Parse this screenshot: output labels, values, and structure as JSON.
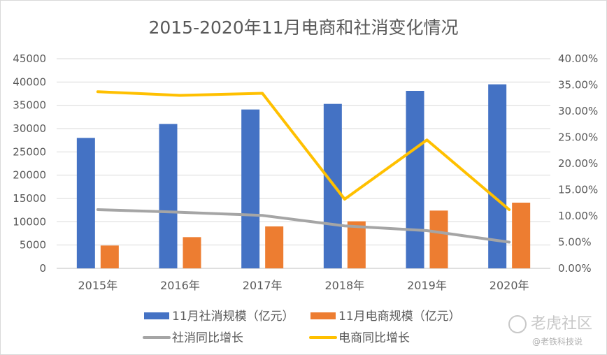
{
  "chart_data": {
    "type": "bar",
    "title": "2015-2020年11月电商和社消变化情况",
    "categories": [
      "2015年",
      "2016年",
      "2017年",
      "2018年",
      "2019年",
      "2020年"
    ],
    "ylim_left": [
      0,
      45000
    ],
    "yticks_left": [
      "0",
      "5000",
      "10000",
      "15000",
      "20000",
      "25000",
      "30000",
      "35000",
      "40000",
      "45000"
    ],
    "ylim_right": [
      0,
      0.4
    ],
    "yticks_right": [
      "0.00%",
      "5.00%",
      "10.00%",
      "15.00%",
      "20.00%",
      "25.00%",
      "30.00%",
      "35.00%",
      "40.00%"
    ],
    "grid": true,
    "legend_position": "bottom",
    "bar_series": [
      {
        "name": "11月社消规模（亿元）",
        "color": "#4472C4",
        "values": [
          28000,
          31000,
          34100,
          35300,
          38100,
          39500
        ]
      },
      {
        "name": "11月电商规模（亿元）",
        "color": "#ED7D31",
        "values": [
          4900,
          6700,
          9000,
          10100,
          12400,
          14100
        ]
      }
    ],
    "line_series": [
      {
        "name": "社消同比增长",
        "color": "#A5A5A5",
        "values": [
          0.112,
          0.107,
          0.101,
          0.081,
          0.072,
          0.05
        ]
      },
      {
        "name": "电商同比增长",
        "color": "#FFC000",
        "values": [
          0.337,
          0.33,
          0.334,
          0.132,
          0.245,
          0.112
        ]
      }
    ]
  },
  "watermark": {
    "brand": "老虎社区",
    "handle": "@老铁科技说"
  }
}
